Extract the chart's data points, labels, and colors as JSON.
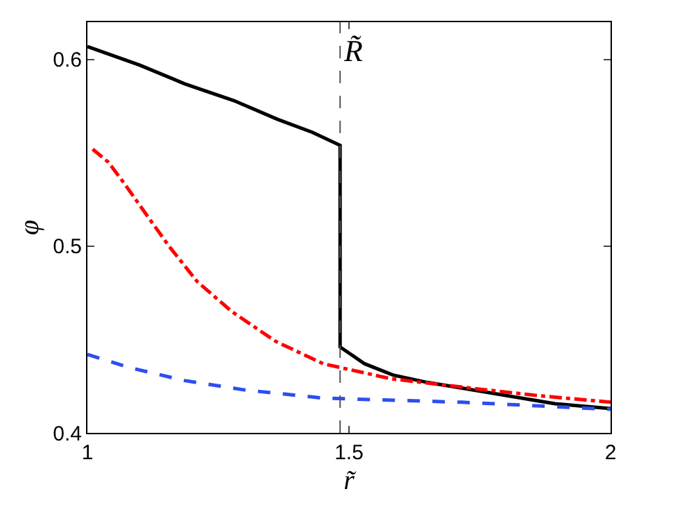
{
  "chart_data": {
    "type": "line",
    "xlabel": "r̃",
    "ylabel": "φ",
    "xlim": [
      1,
      2
    ],
    "ylim": [
      0.4,
      0.62
    ],
    "xticks": [
      1,
      1.5,
      2
    ],
    "yticks": [
      0.4,
      0.5,
      0.6
    ],
    "marker": "none",
    "series": [
      {
        "color": "#000000",
        "line_style": "solid",
        "x": [
          1,
          1.1,
          1.186,
          1.28,
          1.363,
          1.43,
          1.483,
          1.483,
          1.53,
          1.584,
          1.65,
          1.716,
          1.894,
          2
        ],
        "values": [
          0.607,
          0.597,
          0.587,
          0.578,
          0.568,
          0.561,
          0.554,
          0.446,
          0.437,
          0.431,
          0.427,
          0.424,
          0.4156,
          0.413
        ]
      },
      {
        "color": "#ff0000",
        "line_style": "dashdot",
        "x": [
          1.01,
          1.04,
          1.072,
          1.11,
          1.156,
          1.21,
          1.276,
          1.36,
          1.451,
          1.58,
          1.716,
          1.86,
          2
        ],
        "values": [
          0.552,
          0.545,
          0.533,
          0.518,
          0.5,
          0.481,
          0.465,
          0.449,
          0.437,
          0.429,
          0.4245,
          0.42,
          0.4164
        ]
      },
      {
        "color": "#2e4ef0",
        "line_style": "dashed",
        "x": [
          1,
          1.08,
          1.186,
          1.3,
          1.451,
          1.716,
          2
        ],
        "values": [
          0.442,
          0.435,
          0.428,
          0.423,
          0.4186,
          0.4164,
          0.4126
        ]
      }
    ],
    "ref_lines": [
      {
        "axis": "x",
        "value": 1.483,
        "label": "R̃",
        "color": "#555555",
        "line_style": "dashed"
      }
    ]
  }
}
